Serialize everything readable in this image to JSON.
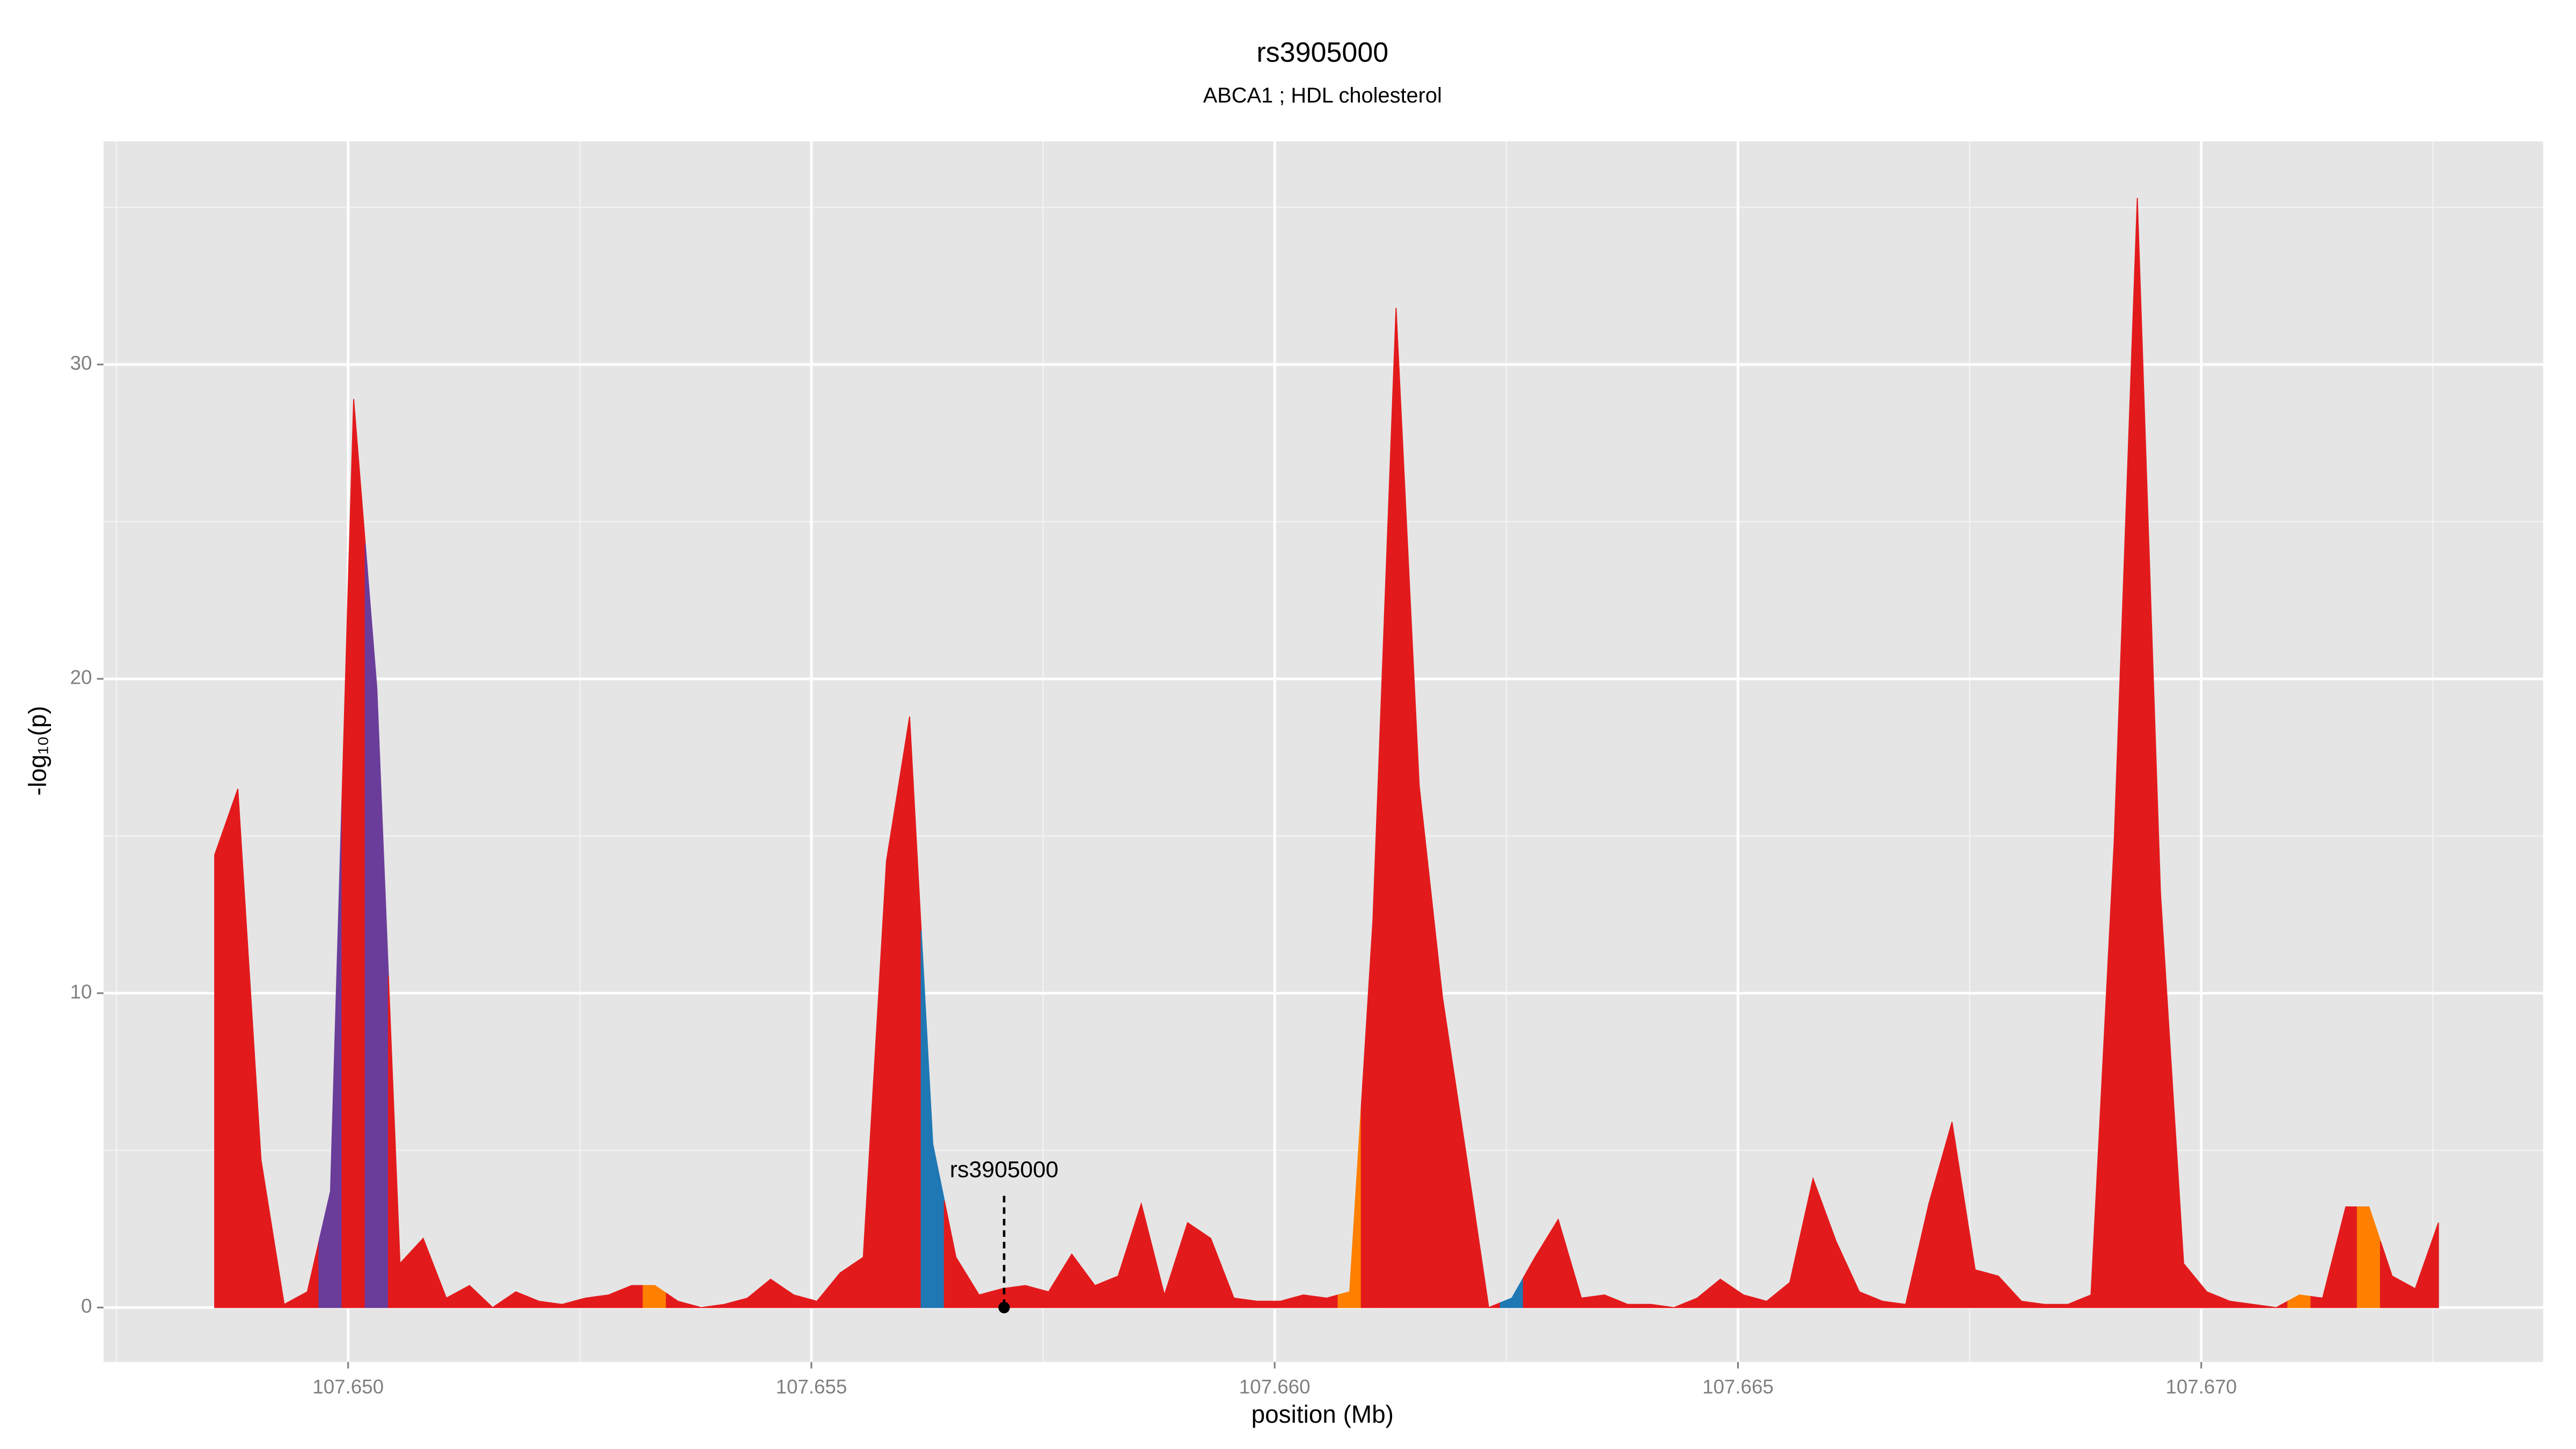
{
  "chart_data": {
    "type": "area",
    "title": "rs3905000",
    "subtitle": "ABCA1 ; HDL cholesterol",
    "x_label": "position (Mb)",
    "y_label": "-log₁₀(p)",
    "x": [
      107.64856,
      107.64881,
      107.64906,
      107.64931,
      107.64956,
      107.64981,
      107.65006,
      107.65031,
      107.65056,
      107.65081,
      107.65106,
      107.65131,
      107.65156,
      107.65181,
      107.65206,
      107.65231,
      107.65256,
      107.65281,
      107.65306,
      107.65331,
      107.65356,
      107.65381,
      107.65406,
      107.65431,
      107.65456,
      107.65481,
      107.65506,
      107.65531,
      107.65556,
      107.65581,
      107.65606,
      107.65631,
      107.65656,
      107.65681,
      107.65706,
      107.65731,
      107.65756,
      107.65781,
      107.65806,
      107.65831,
      107.65856,
      107.65881,
      107.65906,
      107.65931,
      107.65956,
      107.65981,
      107.66006,
      107.66031,
      107.66056,
      107.66081,
      107.66106,
      107.66131,
      107.66156,
      107.66181,
      107.66206,
      107.66231,
      107.66256,
      107.66281,
      107.66306,
      107.66331,
      107.66356,
      107.66381,
      107.66406,
      107.66431,
      107.66456,
      107.66481,
      107.66506,
      107.66531,
      107.66556,
      107.66581,
      107.66606,
      107.66631,
      107.66656,
      107.66681,
      107.66706,
      107.66731,
      107.66756,
      107.66781,
      107.66806,
      107.66831,
      107.66856,
      107.66881,
      107.66906,
      107.66931,
      107.66956,
      107.66981,
      107.67006,
      107.67031,
      107.67056,
      107.67081,
      107.67106,
      107.67131,
      107.67156,
      107.67181,
      107.67206,
      107.67231,
      107.67256
    ],
    "values": [
      14.4,
      16.5,
      4.7,
      0.1,
      0.5,
      3.7,
      28.9,
      19.7,
      1.4,
      2.2,
      0.3,
      0.7,
      0.0,
      0.5,
      0.2,
      0.1,
      0.3,
      0.4,
      0.7,
      0.7,
      0.2,
      0.0,
      0.1,
      0.3,
      0.9,
      0.4,
      0.2,
      1.1,
      1.6,
      14.2,
      18.8,
      5.2,
      1.6,
      0.4,
      0.6,
      0.7,
      0.5,
      1.7,
      0.7,
      1.0,
      3.3,
      0.4,
      2.7,
      2.2,
      0.3,
      0.2,
      0.2,
      0.4,
      0.3,
      0.5,
      12.3,
      31.8,
      16.6,
      9.9,
      5.0,
      0.0,
      0.3,
      1.6,
      2.8,
      0.3,
      0.4,
      0.1,
      0.1,
      0.0,
      0.3,
      0.9,
      0.4,
      0.2,
      0.8,
      4.1,
      2.1,
      0.5,
      0.2,
      0.1,
      3.3,
      5.9,
      1.2,
      1.0,
      0.2,
      0.1,
      0.1,
      0.4,
      14.8,
      35.3,
      13.2,
      1.4,
      0.5,
      0.2,
      0.1,
      0.0,
      0.4,
      0.3,
      3.2,
      3.2,
      1.0,
      0.6,
      2.7
    ],
    "colors": [
      "#e31a1c",
      "#e31a1c",
      "#e31a1c",
      "#e31a1c",
      "#e31a1c",
      "#6a3d9a",
      "#e31a1c",
      "#6a3d9a",
      "#e31a1c",
      "#e31a1c",
      "#e31a1c",
      "#e31a1c",
      "#e31a1c",
      "#e31a1c",
      "#e31a1c",
      "#e31a1c",
      "#e31a1c",
      "#e31a1c",
      "#e31a1c",
      "#ff7f00",
      "#e31a1c",
      "#e31a1c",
      "#e31a1c",
      "#e31a1c",
      "#e31a1c",
      "#e31a1c",
      "#e31a1c",
      "#e31a1c",
      "#e31a1c",
      "#e31a1c",
      "#e31a1c",
      "#1f78b4",
      "#e31a1c",
      "#e31a1c",
      "#e31a1c",
      "#e31a1c",
      "#e31a1c",
      "#e31a1c",
      "#e31a1c",
      "#e31a1c",
      "#e31a1c",
      "#e31a1c",
      "#e31a1c",
      "#e31a1c",
      "#e31a1c",
      "#e31a1c",
      "#e31a1c",
      "#e31a1c",
      "#e31a1c",
      "#ff7f00",
      "#e31a1c",
      "#e31a1c",
      "#e31a1c",
      "#e31a1c",
      "#e31a1c",
      "#e31a1c",
      "#1f78b4",
      "#e31a1c",
      "#e31a1c",
      "#e31a1c",
      "#e31a1c",
      "#e31a1c",
      "#e31a1c",
      "#e31a1c",
      "#e31a1c",
      "#e31a1c",
      "#e31a1c",
      "#e31a1c",
      "#e31a1c",
      "#e31a1c",
      "#e31a1c",
      "#e31a1c",
      "#e31a1c",
      "#e31a1c",
      "#e31a1c",
      "#e31a1c",
      "#e31a1c",
      "#e31a1c",
      "#e31a1c",
      "#e31a1c",
      "#e31a1c",
      "#e31a1c",
      "#e31a1c",
      "#e31a1c",
      "#e31a1c",
      "#e31a1c",
      "#e31a1c",
      "#e31a1c",
      "#e31a1c",
      "#e31a1c",
      "#ff7f00",
      "#e31a1c",
      "#e31a1c",
      "#ff7f00",
      "#e31a1c",
      "#e31a1c",
      "#e31a1c"
    ],
    "annotation": {
      "text": "rs3905000",
      "x": 107.65708,
      "y": 0
    },
    "xlim": [
      107.64736,
      107.67369
    ],
    "ylim": [
      -1.73,
      37.1
    ],
    "xticks": [
      {
        "value": 107.65,
        "label": "107.650"
      },
      {
        "value": 107.655,
        "label": "107.655"
      },
      {
        "value": 107.66,
        "label": "107.660"
      },
      {
        "value": 107.665,
        "label": "107.665"
      },
      {
        "value": 107.67,
        "label": "107.670"
      }
    ],
    "yticks": [
      0,
      10,
      20,
      30
    ],
    "x_minor_grid": [
      107.6475,
      107.6525,
      107.6575,
      107.6625,
      107.6675,
      107.6725
    ],
    "y_minor_grid": [
      5,
      15,
      25,
      35
    ],
    "grid": true,
    "background": "#e5e5e5"
  }
}
